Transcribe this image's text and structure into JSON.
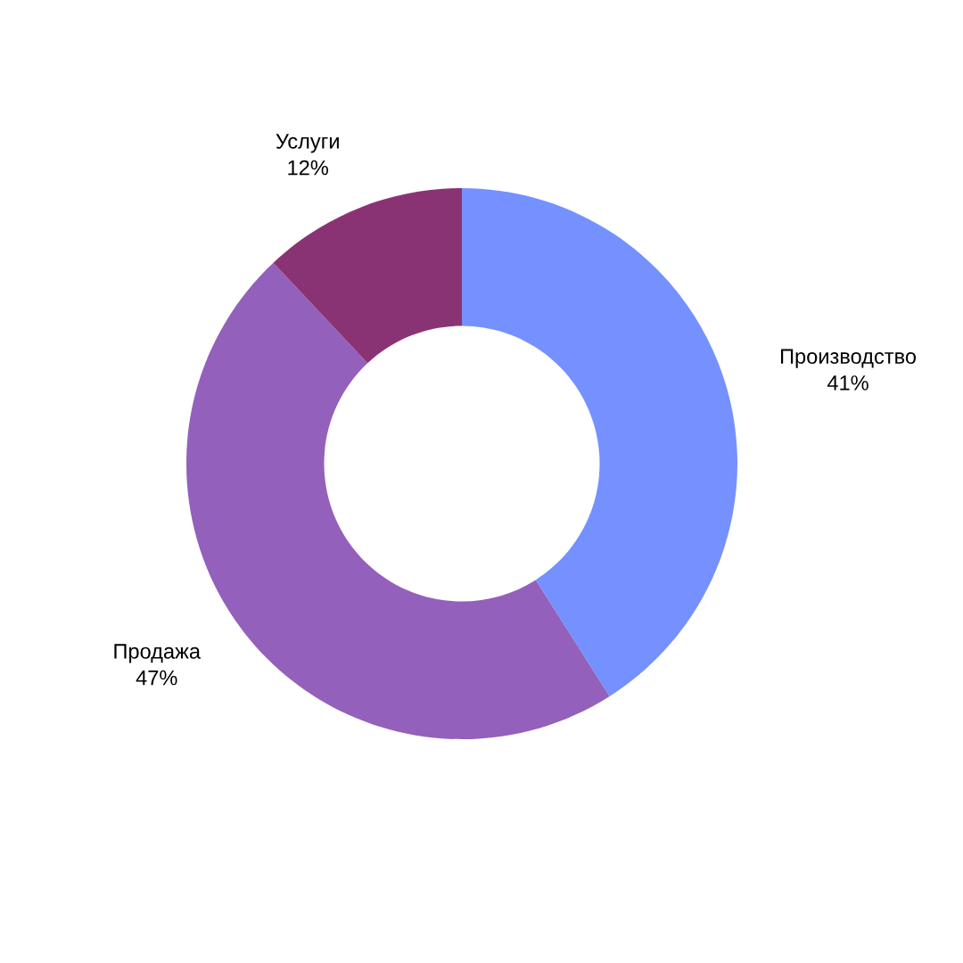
{
  "chart_data": {
    "type": "donut",
    "categories": [
      "Производство",
      "Продажа",
      "Услуги"
    ],
    "values": [
      41,
      47,
      12
    ],
    "colors": [
      "#7591ff",
      "#9360bb",
      "#8a3374"
    ],
    "value_labels": [
      "41%",
      "47%",
      "12%"
    ]
  }
}
